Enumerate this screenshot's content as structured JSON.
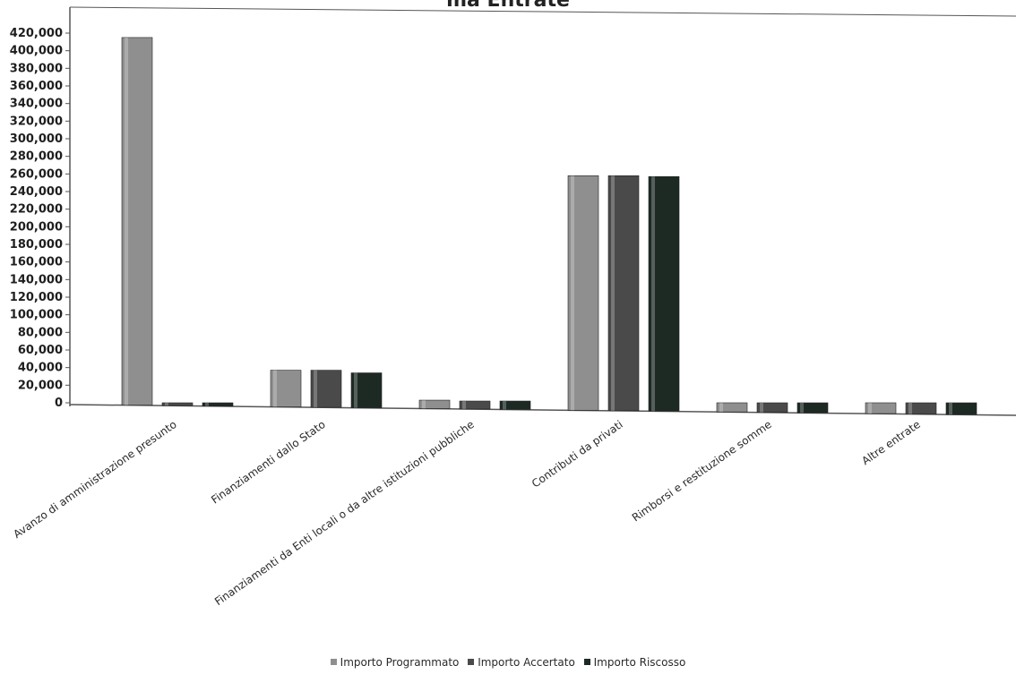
{
  "chart_data": {
    "type": "bar",
    "title": "",
    "title_visible_fragment": "ma Entrate",
    "xlabel": "",
    "ylabel": "",
    "ylim": [
      0,
      430000
    ],
    "yticks": [
      0,
      20000,
      40000,
      60000,
      80000,
      100000,
      120000,
      140000,
      160000,
      180000,
      200000,
      220000,
      240000,
      260000,
      280000,
      300000,
      320000,
      340000,
      360000,
      380000,
      400000,
      420000
    ],
    "ytick_labels": [
      "0",
      "20,000",
      "40,000",
      "60,000",
      "80,000",
      "100,000",
      "120,000",
      "140,000",
      "160,000",
      "180,000",
      "200,000",
      "220,000",
      "240,000",
      "260,000",
      "280,000",
      "300,000",
      "320,000",
      "340,000",
      "360,000",
      "380,000",
      "400,000",
      "420,000"
    ],
    "categories": [
      "Avanzo di amministrazione presunto",
      "Finanziamenti dallo Stato",
      "Finanziamenti da Enti locali o da altre istituzioni pubbliche",
      "Contributi da privati",
      "Rimborsi e restituzione somme",
      "Altre entrate"
    ],
    "series": [
      {
        "name": "Importo Programmato",
        "color": "#8f8f8f",
        "values": [
          415000,
          37000,
          3000,
          258000,
          0,
          0
        ]
      },
      {
        "name": "Importo Accertato",
        "color": "#4a4a4a",
        "values": [
          0,
          37000,
          2000,
          258000,
          0,
          0
        ]
      },
      {
        "name": "Importo Riscosso",
        "color": "#1d2a24",
        "values": [
          0,
          34000,
          2000,
          257000,
          0,
          0
        ]
      }
    ],
    "grid": false,
    "legend_position": "bottom"
  },
  "colors": {
    "axis": "#555555",
    "background": "#ffffff"
  }
}
